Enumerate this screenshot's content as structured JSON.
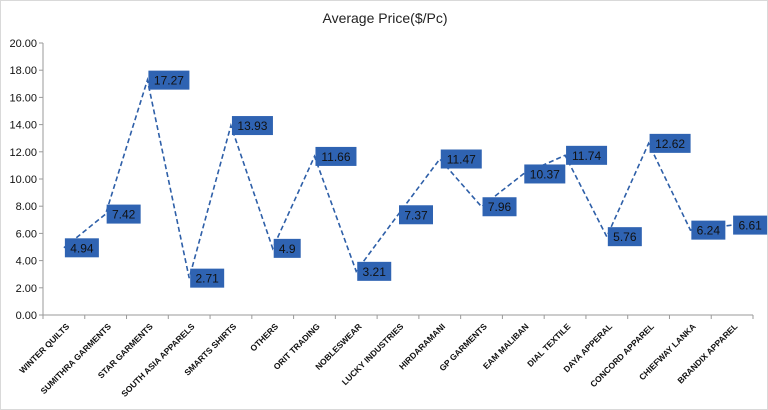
{
  "chart_data": {
    "type": "line",
    "title": "Average Price($/Pc)",
    "xlabel": "",
    "ylabel": "",
    "ylim": [
      0,
      20
    ],
    "yticks": [
      "0.00",
      "2.00",
      "4.00",
      "6.00",
      "8.00",
      "10.00",
      "12.00",
      "14.00",
      "16.00",
      "18.00",
      "20.00"
    ],
    "grid": false,
    "legend": "none",
    "line_style": "dashed",
    "line_color": "#2e5fa8",
    "label_box_color": "#2f63b2",
    "categories": [
      "WINTER QUILTS",
      "SUMITHRA GARMENTS",
      "STAR GARMENTS",
      "SOUTH ASIA APPARELS",
      "SMARTS SHIRTS",
      "OTHERS",
      "ORIT TRADING",
      "NOBLESWEAR",
      "LUCKY INDUSTRIES",
      "HIRDARAMANI",
      "GP GARMENTS",
      "EAM MALIBAN",
      "DIAL TEXTILE",
      "DAYA APPERAL",
      "CONCORD APPAREL",
      "CHIEFWAY LANKA",
      "BRANDIX APPAREL"
    ],
    "values": [
      4.94,
      7.42,
      17.27,
      2.71,
      13.93,
      4.9,
      11.66,
      3.21,
      7.37,
      11.47,
      7.96,
      10.37,
      11.74,
      5.76,
      12.62,
      6.24,
      6.61
    ],
    "data_labels": [
      "4.94",
      "7.42",
      "17.27",
      "2.71",
      "13.93",
      "4.9",
      "11.66",
      "3.21",
      "7.37",
      "11.47",
      "7.96",
      "10.37",
      "11.74",
      "5.76",
      "12.62",
      "6.24",
      "6.61"
    ]
  }
}
